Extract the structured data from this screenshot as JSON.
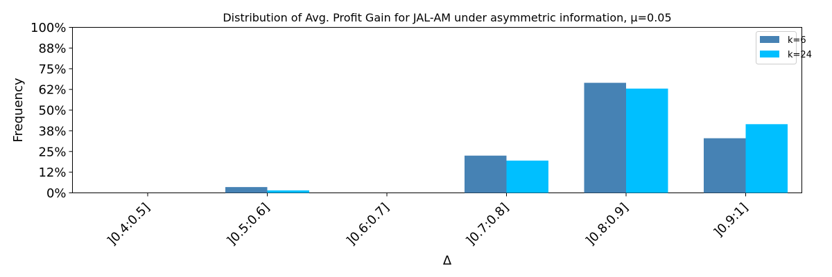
{
  "chart_data": {
    "type": "bar",
    "title": "Distribution of Avg. Profit Gain for JAL-AM under asymmetric information, μ=0.05",
    "xlabel": "Δ",
    "ylabel": "Frequency",
    "categories": [
      "]0.4:0.5]",
      "]0.5:0.6]",
      "]0.6:0.7]",
      "]0.7:0.8]",
      "]0.8:0.9]",
      "]0.9:1]"
    ],
    "series": [
      {
        "name": "k=6",
        "color": "#4682b4",
        "values": [
          0,
          3.5,
          0,
          22.5,
          66.5,
          33
        ]
      },
      {
        "name": "k=24",
        "color": "#00bfff",
        "values": [
          0,
          1.5,
          0,
          19.5,
          63,
          41.5
        ]
      }
    ],
    "ylim": [
      0,
      100
    ],
    "yticks": [
      0,
      12.5,
      25,
      37.5,
      50,
      62.5,
      75,
      87.5,
      100
    ],
    "ytick_labels": [
      "0%",
      "12%",
      "25%",
      "38%",
      "50%",
      "62%",
      "75%",
      "88%",
      "100%"
    ],
    "grid": false,
    "legend_position": "top-right"
  }
}
